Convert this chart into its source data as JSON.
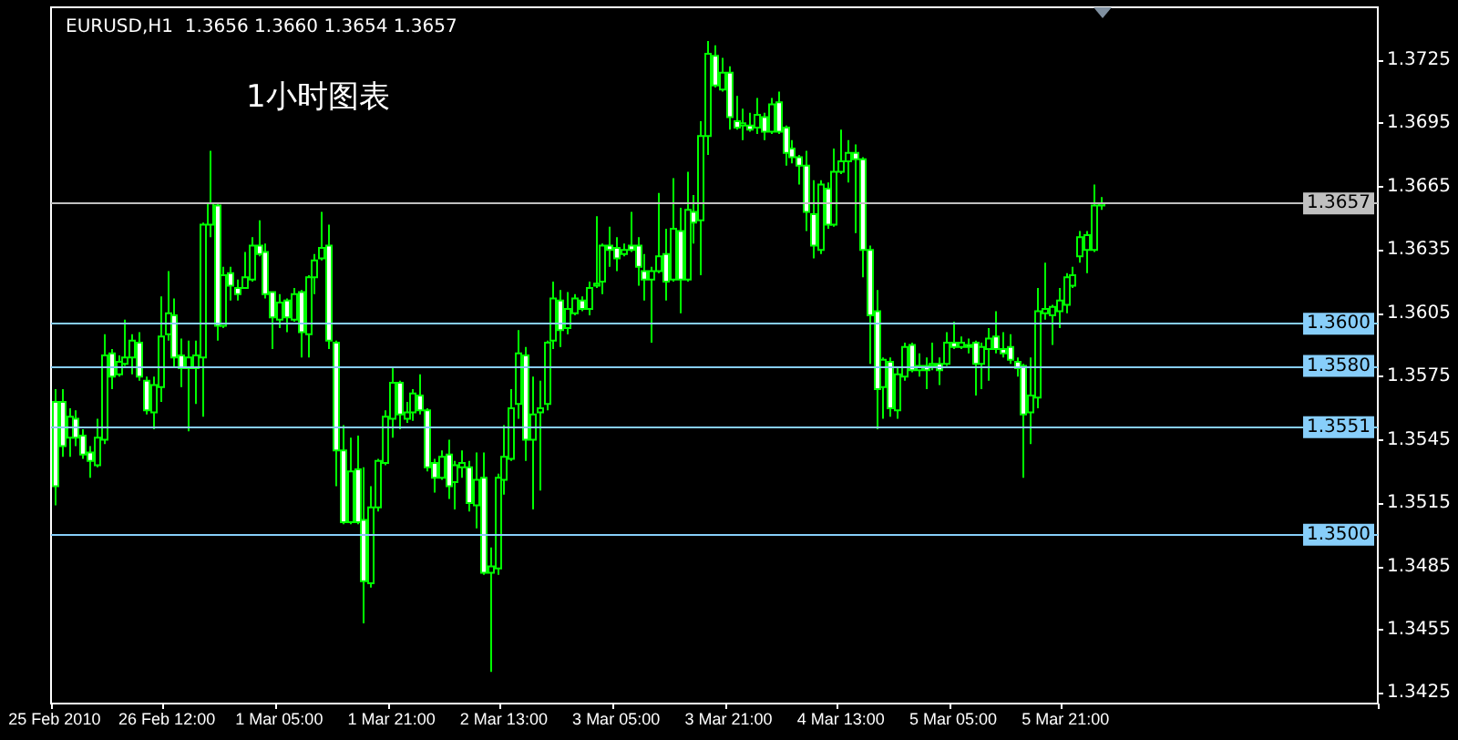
{
  "chart_data": {
    "type": "candlestick",
    "title": "EURUSD,H1  1.3656 1.3660 1.3654 1.3657",
    "subtitle": "1小时图表",
    "color": "#00ff00",
    "categories": [
      "25 Feb 2010",
      null,
      null,
      null,
      null,
      null,
      null,
      null,
      null,
      null,
      null,
      null,
      null,
      null,
      null,
      null,
      "26 Feb 12:00",
      null,
      null,
      null,
      null,
      null,
      null,
      null,
      null,
      null,
      null,
      null,
      null,
      null,
      null,
      null,
      "1 Mar 05:00",
      null,
      null,
      null,
      null,
      null,
      null,
      null,
      null,
      null,
      null,
      null,
      null,
      null,
      null,
      null,
      "1 Mar 21:00",
      null,
      null,
      null,
      null,
      null,
      null,
      null,
      null,
      null,
      null,
      null,
      null,
      null,
      null,
      null,
      "2 Mar 13:00",
      null,
      null,
      null,
      null,
      null,
      null,
      null,
      null,
      null,
      null,
      null,
      null,
      null,
      null,
      null,
      "3 Mar 05:00",
      null,
      null,
      null,
      null,
      null,
      null,
      null,
      null,
      null,
      null,
      null,
      null,
      null,
      null,
      null,
      "3 Mar 21:00",
      null,
      null,
      null,
      null,
      null,
      null,
      null,
      null,
      null,
      null,
      null,
      null,
      null,
      null,
      null,
      "4 Mar 13:00",
      null,
      null,
      null,
      null,
      null,
      null,
      null,
      null,
      null,
      null,
      null,
      null,
      null,
      null,
      null,
      "5 Mar 05:00",
      null,
      null,
      null,
      null,
      null,
      null,
      null,
      null,
      null,
      null,
      null,
      null,
      null,
      null,
      null,
      "5 Mar 21:00",
      null,
      null,
      null,
      null,
      null,
      null,
      null,
      null,
      null,
      null,
      null,
      null,
      null,
      null,
      null,
      null,
      null,
      null,
      null,
      null,
      null,
      null,
      null,
      null,
      null,
      null,
      null,
      null,
      null,
      null,
      null,
      null,
      null,
      null,
      null,
      null,
      null,
      null,
      null,
      null,
      null,
      null,
      null,
      null
    ],
    "ohlc": [
      [
        1.3563,
        1.3569,
        1.3514,
        1.3523
      ],
      [
        1.3563,
        1.3569,
        1.3537,
        1.3542
      ],
      [
        1.3546,
        1.356,
        1.3537,
        1.3556
      ],
      [
        1.3555,
        1.3559,
        1.3542,
        1.3546
      ],
      [
        1.3547,
        1.355,
        1.3536,
        1.3538
      ],
      [
        1.3539,
        1.3542,
        1.3527,
        1.3535
      ],
      [
        1.3533,
        1.3555,
        1.3532,
        1.3546
      ],
      [
        1.3545,
        1.3595,
        1.3543,
        1.3585
      ],
      [
        1.3586,
        1.3588,
        1.3569,
        1.3575
      ],
      [
        1.3576,
        1.3585,
        1.3575,
        1.3582
      ],
      [
        1.3581,
        1.3602,
        1.358,
        1.3584
      ],
      [
        1.3584,
        1.3595,
        1.3576,
        1.3592
      ],
      [
        1.3591,
        1.3596,
        1.3573,
        1.3575
      ],
      [
        1.3573,
        1.3575,
        1.3557,
        1.3559
      ],
      [
        1.3558,
        1.3575,
        1.355,
        1.3571
      ],
      [
        1.357,
        1.3613,
        1.3563,
        1.3594
      ],
      [
        1.3595,
        1.3625,
        1.3592,
        1.3605
      ],
      [
        1.3604,
        1.3612,
        1.3579,
        1.3584
      ],
      [
        1.3585,
        1.3593,
        1.357,
        1.3579
      ],
      [
        1.3579,
        1.3592,
        1.3549,
        1.3584
      ],
      [
        1.3579,
        1.3592,
        1.3562,
        1.3585
      ],
      [
        1.3584,
        1.3648,
        1.3556,
        1.3647
      ],
      [
        1.3647,
        1.3682,
        1.3641,
        1.3657
      ],
      [
        1.3656,
        1.3657,
        1.3592,
        1.3599
      ],
      [
        1.3599,
        1.3627,
        1.3598,
        1.3623
      ],
      [
        1.3624,
        1.3627,
        1.3611,
        1.3618
      ],
      [
        1.3617,
        1.3621,
        1.3611,
        1.3614
      ],
      [
        1.3617,
        1.3634,
        1.3617,
        1.3622
      ],
      [
        1.3621,
        1.3641,
        1.362,
        1.3637
      ],
      [
        1.3637,
        1.3649,
        1.3632,
        1.3633
      ],
      [
        1.3634,
        1.3638,
        1.3612,
        1.3614
      ],
      [
        1.3615,
        1.3615,
        1.3588,
        1.3603
      ],
      [
        1.3602,
        1.3614,
        1.3598,
        1.361
      ],
      [
        1.3611,
        1.3612,
        1.3596,
        1.3603
      ],
      [
        1.3602,
        1.3617,
        1.3601,
        1.3614
      ],
      [
        1.3615,
        1.3616,
        1.3584,
        1.3596
      ],
      [
        1.3595,
        1.3623,
        1.3584,
        1.3622
      ],
      [
        1.3622,
        1.3633,
        1.3614,
        1.363
      ],
      [
        1.3631,
        1.3653,
        1.363,
        1.3636
      ],
      [
        1.3637,
        1.3647,
        1.3588,
        1.3592
      ],
      [
        1.3591,
        1.3592,
        1.3523,
        1.354
      ],
      [
        1.354,
        1.3552,
        1.3505,
        1.3506
      ],
      [
        1.3506,
        1.3546,
        1.3505,
        1.353
      ],
      [
        1.3531,
        1.3547,
        1.3505,
        1.3506
      ],
      [
        1.3507,
        1.3532,
        1.3458,
        1.3478
      ],
      [
        1.3477,
        1.3523,
        1.3475,
        1.3513
      ],
      [
        1.3513,
        1.3536,
        1.3511,
        1.3535
      ],
      [
        1.3534,
        1.3559,
        1.3533,
        1.3556
      ],
      [
        1.3555,
        1.3579,
        1.3546,
        1.3572
      ],
      [
        1.3572,
        1.3573,
        1.355,
        1.3557
      ],
      [
        1.3555,
        1.3563,
        1.3553,
        1.3558
      ],
      [
        1.3558,
        1.3569,
        1.3554,
        1.3567
      ],
      [
        1.3566,
        1.3576,
        1.3557,
        1.3559
      ],
      [
        1.3559,
        1.356,
        1.353,
        1.3532
      ],
      [
        1.3534,
        1.3536,
        1.352,
        1.3527
      ],
      [
        1.3527,
        1.354,
        1.3526,
        1.3537
      ],
      [
        1.3538,
        1.3545,
        1.3517,
        1.3523
      ],
      [
        1.3525,
        1.3535,
        1.3512,
        1.3533
      ],
      [
        1.3532,
        1.354,
        1.3527,
        1.3534
      ],
      [
        1.3532,
        1.3535,
        1.3511,
        1.3515
      ],
      [
        1.3514,
        1.3539,
        1.3503,
        1.3526
      ],
      [
        1.3527,
        1.3539,
        1.3481,
        1.3482
      ],
      [
        1.3482,
        1.3494,
        1.3435,
        1.3485
      ],
      [
        1.3484,
        1.3529,
        1.3481,
        1.3527
      ],
      [
        1.3526,
        1.3552,
        1.3519,
        1.3537
      ],
      [
        1.3536,
        1.3569,
        1.3535,
        1.356
      ],
      [
        1.3562,
        1.3597,
        1.3555,
        1.3586
      ],
      [
        1.3585,
        1.3589,
        1.3535,
        1.3545
      ],
      [
        1.3545,
        1.3575,
        1.3512,
        1.3557
      ],
      [
        1.3558,
        1.3573,
        1.3521,
        1.356
      ],
      [
        1.3562,
        1.3592,
        1.3559,
        1.3591
      ],
      [
        1.3592,
        1.362,
        1.3588,
        1.3612
      ],
      [
        1.3611,
        1.3616,
        1.3589,
        1.3597
      ],
      [
        1.3598,
        1.3615,
        1.3595,
        1.3607
      ],
      [
        1.3605,
        1.3614,
        1.3604,
        1.3612
      ],
      [
        1.3611,
        1.3613,
        1.3606,
        1.3607
      ],
      [
        1.3607,
        1.362,
        1.3604,
        1.3617
      ],
      [
        1.3618,
        1.3651,
        1.3617,
        1.3619
      ],
      [
        1.362,
        1.3638,
        1.3614,
        1.3637
      ],
      [
        1.3637,
        1.3646,
        1.3627,
        1.3635
      ],
      [
        1.3636,
        1.3641,
        1.3625,
        1.3631
      ],
      [
        1.3633,
        1.3638,
        1.3632,
        1.3635
      ],
      [
        1.3637,
        1.3653,
        1.3634,
        1.3635
      ],
      [
        1.3637,
        1.3641,
        1.3618,
        1.3627
      ],
      [
        1.3625,
        1.3633,
        1.3611,
        1.3621
      ],
      [
        1.3621,
        1.3627,
        1.3591,
        1.3625
      ],
      [
        1.3625,
        1.3662,
        1.3624,
        1.3632
      ],
      [
        1.3633,
        1.3645,
        1.3611,
        1.362
      ],
      [
        1.3621,
        1.3669,
        1.362,
        1.3645
      ],
      [
        1.3644,
        1.3655,
        1.3605,
        1.3621
      ],
      [
        1.3621,
        1.3672,
        1.362,
        1.3654
      ],
      [
        1.3653,
        1.3661,
        1.3638,
        1.3648
      ],
      [
        1.3649,
        1.3696,
        1.3623,
        1.3689
      ],
      [
        1.3689,
        1.3734,
        1.368,
        1.3728
      ],
      [
        1.3727,
        1.3732,
        1.3712,
        1.3713
      ],
      [
        1.3711,
        1.3726,
        1.371,
        1.3719
      ],
      [
        1.3719,
        1.3722,
        1.3692,
        1.3698
      ],
      [
        1.3696,
        1.3708,
        1.3692,
        1.3693
      ],
      [
        1.3694,
        1.3702,
        1.3687,
        1.3695
      ],
      [
        1.3694,
        1.37,
        1.3691,
        1.3692
      ],
      [
        1.3693,
        1.3707,
        1.369,
        1.3699
      ],
      [
        1.3698,
        1.37,
        1.3687,
        1.3691
      ],
      [
        1.3691,
        1.3707,
        1.369,
        1.3704
      ],
      [
        1.3705,
        1.371,
        1.369,
        1.3691
      ],
      [
        1.3693,
        1.3694,
        1.3675,
        1.3681
      ],
      [
        1.3683,
        1.3687,
        1.3676,
        1.3679
      ],
      [
        1.3679,
        1.368,
        1.3666,
        1.3675
      ],
      [
        1.3675,
        1.3682,
        1.3644,
        1.3653
      ],
      [
        1.3652,
        1.3668,
        1.3631,
        1.3637
      ],
      [
        1.3635,
        1.3668,
        1.3633,
        1.3666
      ],
      [
        1.3664,
        1.3667,
        1.3645,
        1.3647
      ],
      [
        1.3647,
        1.3683,
        1.3646,
        1.3672
      ],
      [
        1.3672,
        1.3692,
        1.3671,
        1.3677
      ],
      [
        1.3677,
        1.3687,
        1.3667,
        1.3681
      ],
      [
        1.3681,
        1.3685,
        1.3643,
        1.3678
      ],
      [
        1.3678,
        1.3679,
        1.3622,
        1.3635
      ],
      [
        1.3635,
        1.3637,
        1.3581,
        1.3604
      ],
      [
        1.3606,
        1.3616,
        1.355,
        1.3569
      ],
      [
        1.357,
        1.3584,
        1.3555,
        1.3583
      ],
      [
        1.3582,
        1.3584,
        1.3556,
        1.356
      ],
      [
        1.3559,
        1.3579,
        1.3555,
        1.3576
      ],
      [
        1.3575,
        1.3591,
        1.3573,
        1.3589
      ],
      [
        1.359,
        1.3591,
        1.3577,
        1.3578
      ],
      [
        1.3578,
        1.3586,
        1.3575,
        1.358
      ],
      [
        1.358,
        1.3584,
        1.3569,
        1.3578
      ],
      [
        1.358,
        1.3591,
        1.3578,
        1.3581
      ],
      [
        1.3581,
        1.3584,
        1.3571,
        1.3578
      ],
      [
        1.3581,
        1.3596,
        1.358,
        1.3591
      ],
      [
        1.3591,
        1.3601,
        1.3588,
        1.3589
      ],
      [
        1.3589,
        1.3594,
        1.3588,
        1.3591
      ],
      [
        1.359,
        1.3593,
        1.3586,
        1.3589
      ],
      [
        1.3591,
        1.3592,
        1.3566,
        1.3581
      ],
      [
        1.3581,
        1.3591,
        1.3569,
        1.3589
      ],
      [
        1.3588,
        1.3598,
        1.3573,
        1.3593
      ],
      [
        1.3594,
        1.3606,
        1.3586,
        1.3588
      ],
      [
        1.3588,
        1.3596,
        1.3584,
        1.3586
      ],
      [
        1.3589,
        1.3595,
        1.3581,
        1.3583
      ],
      [
        1.3582,
        1.3584,
        1.3575,
        1.3579
      ],
      [
        1.358,
        1.3581,
        1.3527,
        1.3557
      ],
      [
        1.3558,
        1.3584,
        1.3543,
        1.3566
      ],
      [
        1.3565,
        1.3617,
        1.356,
        1.3606
      ],
      [
        1.3605,
        1.3629,
        1.3602,
        1.3607
      ],
      [
        1.3604,
        1.3609,
        1.359,
        1.3608
      ],
      [
        1.3606,
        1.3617,
        1.3598,
        1.3611
      ],
      [
        1.3609,
        1.3624,
        1.3605,
        1.3622
      ],
      [
        1.3618,
        1.3627,
        1.3617,
        1.3623
      ],
      [
        1.3632,
        1.3644,
        1.3629,
        1.3641
      ],
      [
        1.3635,
        1.3644,
        1.3624,
        1.3642
      ],
      [
        1.3635,
        1.3666,
        1.3634,
        1.3656
      ],
      [
        1.3656,
        1.366,
        1.3654,
        1.3657
      ],
      null,
      null,
      null,
      null,
      null,
      null,
      null,
      null,
      null,
      null,
      null,
      null,
      null,
      null,
      null,
      null,
      null,
      null,
      null,
      null,
      null,
      null,
      null,
      null,
      null,
      null,
      null,
      null,
      null,
      null,
      null,
      null,
      null,
      null,
      null,
      null,
      null,
      null,
      null
    ],
    "ylim": [
      1.342,
      1.375
    ],
    "yticks": [
      1.3425,
      1.3455,
      1.3485,
      1.3515,
      1.3545,
      1.3575,
      1.3605,
      1.3635,
      1.3665,
      1.3695,
      1.3725
    ],
    "ref_lines": [
      {
        "axis": "y",
        "value": 1.3657,
        "label": "1.3657",
        "color": "#c0c0c0"
      },
      {
        "axis": "y",
        "value": 1.36,
        "label": "1.3600",
        "color": "#87cefa"
      },
      {
        "axis": "y",
        "value": 1.358,
        "label": "1.3580",
        "color": "#87cefa"
      },
      {
        "axis": "y",
        "value": 1.3551,
        "label": "1.3551",
        "color": "#87cefa"
      },
      {
        "axis": "y",
        "value": 1.35,
        "label": "1.3500",
        "color": "#87cefa"
      }
    ],
    "grid": false
  }
}
